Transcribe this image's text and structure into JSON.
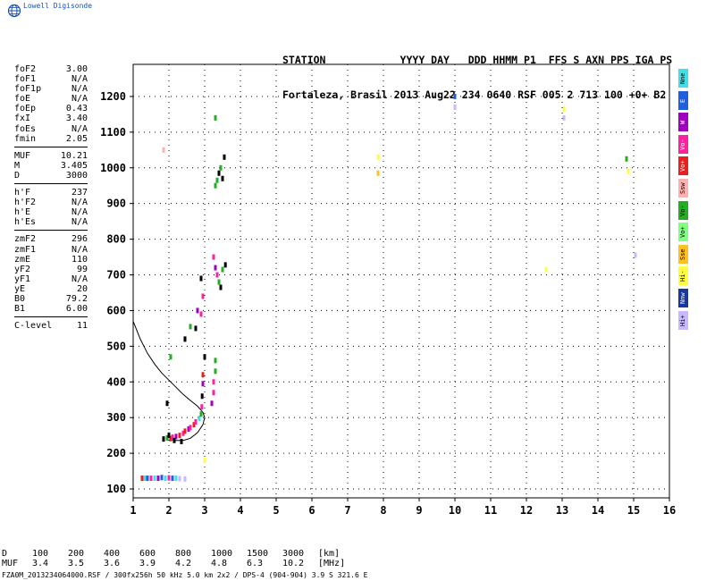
{
  "brand": {
    "name": "Lowell Digisonde"
  },
  "header": {
    "line1": "STATION            YYYY DAY   DDD HHMM P1  FFS S AXN PPS IGA PS",
    "line2": "Fortaleza, Brasil 2013 Aug22 234 0640 RSF 005 2 713 100 +0+ B2"
  },
  "params": {
    "group1": [
      {
        "label": "foF2",
        "value": "3.00"
      },
      {
        "label": "foF1",
        "value": "N/A"
      },
      {
        "label": "foF1p",
        "value": "N/A"
      },
      {
        "label": "foE",
        "value": "N/A"
      },
      {
        "label": "foEp",
        "value": "0.43"
      },
      {
        "label": "fxI",
        "value": "3.40"
      },
      {
        "label": "foEs",
        "value": "N/A"
      },
      {
        "label": "fmin",
        "value": "2.05"
      }
    ],
    "group2": [
      {
        "label": "MUF",
        "value": "10.21"
      },
      {
        "label": "M",
        "value": "3.405"
      },
      {
        "label": "D",
        "value": "3000"
      }
    ],
    "group3": [
      {
        "label": "h'F",
        "value": "237"
      },
      {
        "label": "h'F2",
        "value": "N/A"
      },
      {
        "label": "h'E",
        "value": "N/A"
      },
      {
        "label": "h'Es",
        "value": "N/A"
      }
    ],
    "group4": [
      {
        "label": "zmF2",
        "value": "296"
      },
      {
        "label": "zmF1",
        "value": "N/A"
      },
      {
        "label": "zmE",
        "value": "110"
      },
      {
        "label": "yF2",
        "value": "99"
      },
      {
        "label": "yF1",
        "value": "N/A"
      },
      {
        "label": "yE",
        "value": "20"
      },
      {
        "label": "B0",
        "value": "79.2"
      },
      {
        "label": "B1",
        "value": "6.00"
      }
    ],
    "group5": [
      {
        "label": "C-level",
        "value": "11"
      }
    ]
  },
  "legend": [
    {
      "label": "Nne",
      "color": "#40e0e8",
      "text": "#000000"
    },
    {
      "label": "E",
      "color": "#2060e0",
      "text": "#ffffff"
    },
    {
      "label": "W",
      "color": "#a000c0",
      "text": "#ffffff"
    },
    {
      "label": "Vo-",
      "color": "#ff20a0",
      "text": "#ffffff"
    },
    {
      "label": "Vo+",
      "color": "#e82020",
      "text": "#ffffff"
    },
    {
      "label": "Ssw",
      "color": "#ffb0b0",
      "text": "#000000"
    },
    {
      "label": "Vo-",
      "color": "#20b020",
      "text": "#000000"
    },
    {
      "label": "Vo+",
      "color": "#80ff80",
      "text": "#000000"
    },
    {
      "label": "Sse",
      "color": "#ffc020",
      "text": "#000000"
    },
    {
      "label": "Hi-",
      "color": "#ffff40",
      "text": "#000000"
    },
    {
      "label": "Nnw",
      "color": "#1838a0",
      "text": "#ffffff"
    },
    {
      "label": "Hi+",
      "color": "#c8b8ff",
      "text": "#000000"
    }
  ],
  "muf_table": {
    "d_label": "D",
    "d_values": [
      "100",
      "200",
      "400",
      "600",
      "800",
      "1000",
      "1500",
      "3000",
      "[km]"
    ],
    "muf_label": "MUF",
    "muf_values": [
      "3.4",
      "3.5",
      "3.6",
      "3.9",
      "4.2",
      "4.8",
      "6.3",
      "10.2",
      "[MHz]"
    ]
  },
  "footer": {
    "text": "FZA0M_2013234064000.RSF / 300fx256h 50 kHz 5.0 km 2x2 / DPS-4 (904-904)  3.9 S 321.6 E"
  },
  "chart_data": {
    "type": "scatter",
    "title": "",
    "xlabel": "",
    "ylabel": "",
    "xlim": [
      1,
      16
    ],
    "ylim": [
      75,
      1290
    ],
    "x_ticks": [
      1,
      2,
      3,
      4,
      5,
      6,
      7,
      8,
      9,
      10,
      11,
      12,
      13,
      14,
      15,
      16
    ],
    "y_ticks": [
      100,
      200,
      300,
      400,
      500,
      600,
      700,
      800,
      900,
      1000,
      1100,
      1200
    ],
    "grid": true,
    "profile_curve": [
      [
        1.0,
        570
      ],
      [
        1.2,
        520
      ],
      [
        1.4,
        480
      ],
      [
        1.6,
        450
      ],
      [
        1.8,
        425
      ],
      [
        2.0,
        405
      ],
      [
        2.2,
        385
      ],
      [
        2.4,
        365
      ],
      [
        2.6,
        348
      ],
      [
        2.8,
        332
      ],
      [
        2.95,
        315
      ],
      [
        3.0,
        300
      ],
      [
        2.95,
        280
      ],
      [
        2.8,
        258
      ],
      [
        2.6,
        242
      ],
      [
        2.4,
        236
      ],
      [
        2.2,
        236
      ],
      [
        2.05,
        238
      ]
    ],
    "echo_points": [
      {
        "x": 1.25,
        "y": 130,
        "c": "#e82020"
      },
      {
        "x": 1.33,
        "y": 130,
        "c": "#40e0e8"
      },
      {
        "x": 1.4,
        "y": 130,
        "c": "#2060e0"
      },
      {
        "x": 1.5,
        "y": 130,
        "c": "#ff20a0"
      },
      {
        "x": 1.6,
        "y": 130,
        "c": "#40e0e8"
      },
      {
        "x": 1.7,
        "y": 130,
        "c": "#a000c0"
      },
      {
        "x": 1.8,
        "y": 132,
        "c": "#2060e0"
      },
      {
        "x": 1.9,
        "y": 130,
        "c": "#40e0e8"
      },
      {
        "x": 2.0,
        "y": 131,
        "c": "#ff20a0"
      },
      {
        "x": 2.1,
        "y": 130,
        "c": "#2060e0"
      },
      {
        "x": 2.2,
        "y": 130,
        "c": "#40e0e8"
      },
      {
        "x": 2.3,
        "y": 129,
        "c": "#c8b8ff"
      },
      {
        "x": 2.45,
        "y": 128,
        "c": "#c8b8ff"
      },
      {
        "x": 1.85,
        "y": 240,
        "c": "#000000"
      },
      {
        "x": 1.95,
        "y": 243,
        "c": "#20b020"
      },
      {
        "x": 2.0,
        "y": 252,
        "c": "#40e0e8"
      },
      {
        "x": 2.05,
        "y": 241,
        "c": "#e82020"
      },
      {
        "x": 2.1,
        "y": 245,
        "c": "#ff20a0"
      },
      {
        "x": 2.2,
        "y": 247,
        "c": "#a000c0"
      },
      {
        "x": 2.3,
        "y": 250,
        "c": "#e82020"
      },
      {
        "x": 2.4,
        "y": 256,
        "c": "#ff20a0"
      },
      {
        "x": 2.45,
        "y": 262,
        "c": "#e82020"
      },
      {
        "x": 2.55,
        "y": 268,
        "c": "#a000c0"
      },
      {
        "x": 2.6,
        "y": 272,
        "c": "#ff20a0"
      },
      {
        "x": 2.7,
        "y": 280,
        "c": "#e82020"
      },
      {
        "x": 2.75,
        "y": 288,
        "c": "#ff20a0"
      },
      {
        "x": 2.85,
        "y": 298,
        "c": "#40e0e8"
      },
      {
        "x": 2.9,
        "y": 310,
        "c": "#20b020"
      },
      {
        "x": 2.92,
        "y": 330,
        "c": "#ff20a0"
      },
      {
        "x": 2.93,
        "y": 360,
        "c": "#000000"
      },
      {
        "x": 2.95,
        "y": 395,
        "c": "#a000c0"
      },
      {
        "x": 2.95,
        "y": 420,
        "c": "#e82020"
      },
      {
        "x": 2.35,
        "y": 233,
        "c": "#000000"
      },
      {
        "x": 2.15,
        "y": 236,
        "c": "#000000"
      },
      {
        "x": 1.95,
        "y": 340,
        "c": "#000000"
      },
      {
        "x": 2.05,
        "y": 470,
        "c": "#20b020"
      },
      {
        "x": 2.45,
        "y": 520,
        "c": "#000000"
      },
      {
        "x": 2.6,
        "y": 555,
        "c": "#20b020"
      },
      {
        "x": 2.75,
        "y": 550,
        "c": "#000000"
      },
      {
        "x": 2.8,
        "y": 600,
        "c": "#a000c0"
      },
      {
        "x": 2.9,
        "y": 590,
        "c": "#ff20a0"
      },
      {
        "x": 2.95,
        "y": 640,
        "c": "#ff20a0"
      },
      {
        "x": 2.9,
        "y": 690,
        "c": "#000000"
      },
      {
        "x": 3.0,
        "y": 470,
        "c": "#000000"
      },
      {
        "x": 3.3,
        "y": 460,
        "c": "#20b020"
      },
      {
        "x": 3.3,
        "y": 430,
        "c": "#20b020"
      },
      {
        "x": 3.25,
        "y": 400,
        "c": "#ff20a0"
      },
      {
        "x": 3.25,
        "y": 370,
        "c": "#ff20a0"
      },
      {
        "x": 3.2,
        "y": 340,
        "c": "#a000c0"
      },
      {
        "x": 3.25,
        "y": 750,
        "c": "#ff20a0"
      },
      {
        "x": 3.3,
        "y": 720,
        "c": "#a000c0"
      },
      {
        "x": 3.35,
        "y": 700,
        "c": "#ff20a0"
      },
      {
        "x": 3.4,
        "y": 680,
        "c": "#20b020"
      },
      {
        "x": 3.45,
        "y": 665,
        "c": "#000000"
      },
      {
        "x": 3.5,
        "y": 715,
        "c": "#20b020"
      },
      {
        "x": 3.58,
        "y": 728,
        "c": "#000000"
      },
      {
        "x": 3.3,
        "y": 950,
        "c": "#20b020"
      },
      {
        "x": 3.35,
        "y": 965,
        "c": "#20b020"
      },
      {
        "x": 3.4,
        "y": 985,
        "c": "#000000"
      },
      {
        "x": 3.45,
        "y": 1000,
        "c": "#20b020"
      },
      {
        "x": 3.5,
        "y": 970,
        "c": "#000000"
      },
      {
        "x": 3.55,
        "y": 1030,
        "c": "#000000"
      },
      {
        "x": 3.3,
        "y": 1140,
        "c": "#20b020"
      },
      {
        "x": 1.85,
        "y": 1050,
        "c": "#ffb0b0"
      },
      {
        "x": 7.85,
        "y": 1030,
        "c": "#ffff40"
      },
      {
        "x": 7.85,
        "y": 985,
        "c": "#ffc020"
      },
      {
        "x": 10.0,
        "y": 1200,
        "c": "#2060e0"
      },
      {
        "x": 10.0,
        "y": 1170,
        "c": "#c8b8ff"
      },
      {
        "x": 12.55,
        "y": 715,
        "c": "#ffff40"
      },
      {
        "x": 13.05,
        "y": 1165,
        "c": "#ffff40"
      },
      {
        "x": 13.05,
        "y": 1140,
        "c": "#c8b8ff"
      },
      {
        "x": 14.8,
        "y": 1025,
        "c": "#20b020"
      },
      {
        "x": 14.85,
        "y": 990,
        "c": "#ffff40"
      },
      {
        "x": 15.05,
        "y": 755,
        "c": "#c8b8ff"
      },
      {
        "x": 3.0,
        "y": 180,
        "c": "#ffff40"
      },
      {
        "x": 2.0,
        "y": 250,
        "c": "#000000"
      }
    ]
  }
}
